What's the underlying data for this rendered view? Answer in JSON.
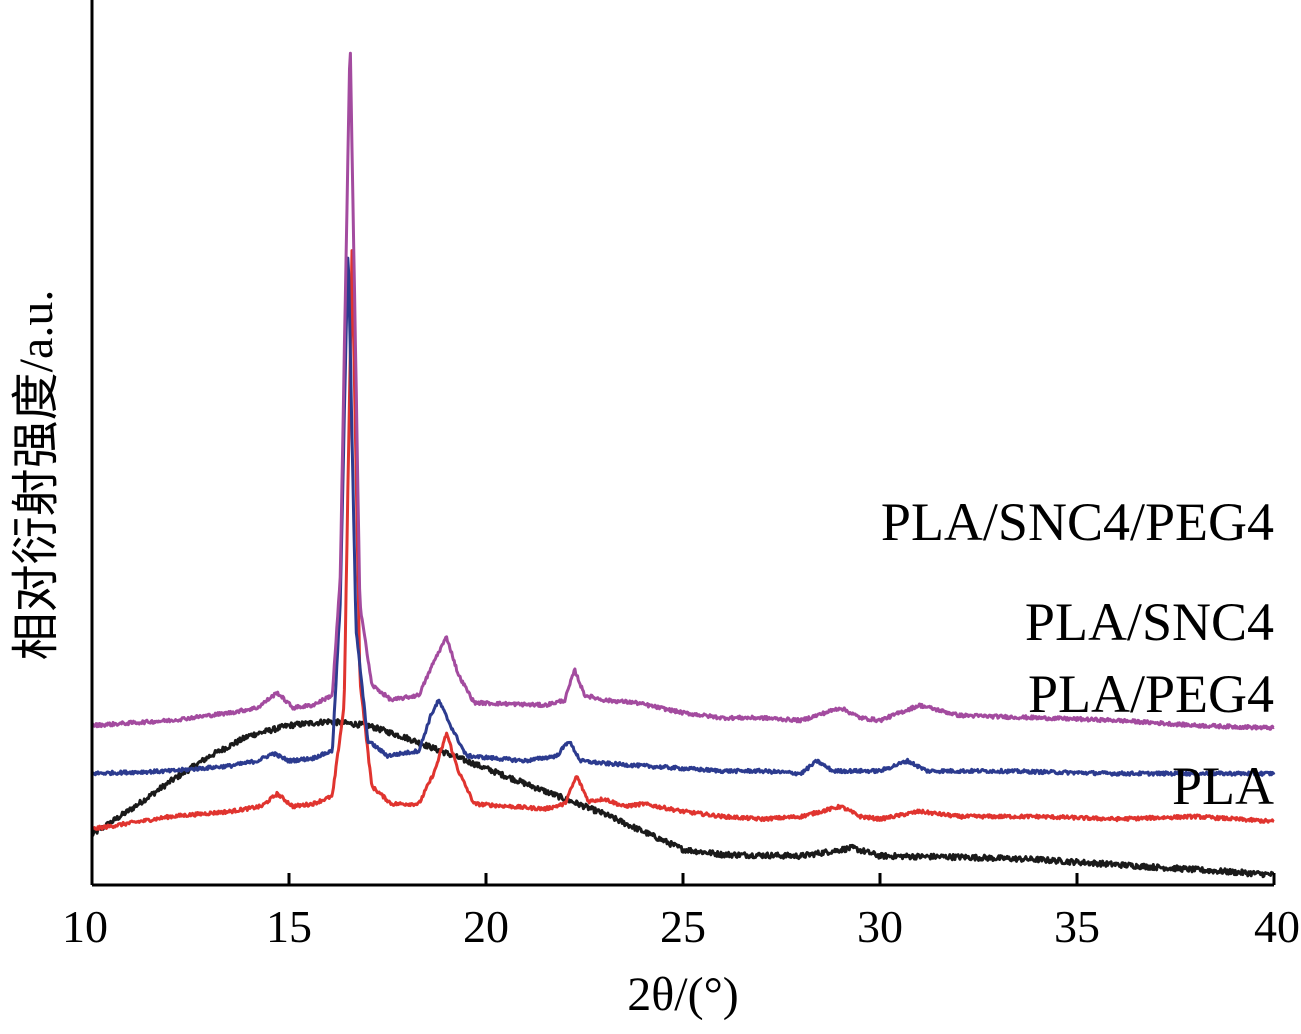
{
  "chart_data": {
    "type": "line",
    "xlabel": "2θ/(°)",
    "ylabel": "相对衍射强度/a.u.",
    "xlim": [
      10,
      40
    ],
    "xticks": [
      10,
      15,
      20,
      25,
      30,
      35,
      40
    ],
    "yticks_shown": false,
    "legend": "inline labels at right end of each trace",
    "series": [
      {
        "name": "PLA",
        "color": "#1a1a1a",
        "points": [
          [
            10,
            0.44
          ],
          [
            11,
            0.95
          ],
          [
            12,
            1.5
          ],
          [
            13,
            2.0
          ],
          [
            14,
            2.4
          ],
          [
            15,
            2.6
          ],
          [
            16,
            2.68
          ],
          [
            17,
            2.6
          ],
          [
            18,
            2.35
          ],
          [
            19,
            2.05
          ],
          [
            20,
            1.75
          ],
          [
            21,
            1.45
          ],
          [
            22,
            1.15
          ],
          [
            23,
            0.85
          ],
          [
            24,
            0.5
          ],
          [
            25,
            0.15
          ],
          [
            26,
            0.05
          ],
          [
            28,
            0.02
          ],
          [
            29.3,
            0.18
          ],
          [
            30,
            0.02
          ],
          [
            32,
            0.0
          ],
          [
            34,
            -0.05
          ],
          [
            36,
            -0.15
          ],
          [
            38,
            -0.25
          ],
          [
            40,
            -0.35
          ]
        ]
      },
      {
        "name": "PLA/PEG4",
        "color": "#e0342f",
        "points": [
          [
            10,
            0.55
          ],
          [
            12,
            0.8
          ],
          [
            13.5,
            0.9
          ],
          [
            14.3,
            1.0
          ],
          [
            14.7,
            1.25
          ],
          [
            15.1,
            1.0
          ],
          [
            15.6,
            1.05
          ],
          [
            16.1,
            1.2
          ],
          [
            16.4,
            3.0
          ],
          [
            16.6,
            12.0
          ],
          [
            16.8,
            3.5
          ],
          [
            17.1,
            1.4
          ],
          [
            17.6,
            1.05
          ],
          [
            18.3,
            1.05
          ],
          [
            18.7,
            1.7
          ],
          [
            19.0,
            2.45
          ],
          [
            19.3,
            1.7
          ],
          [
            19.7,
            1.05
          ],
          [
            21.5,
            0.95
          ],
          [
            22.0,
            1.05
          ],
          [
            22.3,
            1.6
          ],
          [
            22.6,
            1.1
          ],
          [
            23.0,
            1.15
          ],
          [
            23.5,
            1.0
          ],
          [
            24.0,
            1.05
          ],
          [
            25.0,
            0.9
          ],
          [
            26.0,
            0.8
          ],
          [
            27.0,
            0.75
          ],
          [
            28.0,
            0.8
          ],
          [
            29.0,
            1.0
          ],
          [
            29.5,
            0.8
          ],
          [
            30.0,
            0.75
          ],
          [
            31.0,
            0.9
          ],
          [
            32.0,
            0.8
          ],
          [
            34.0,
            0.8
          ],
          [
            36.0,
            0.75
          ],
          [
            38.0,
            0.8
          ],
          [
            40.0,
            0.7
          ]
        ]
      },
      {
        "name": "PLA/SNC4",
        "color": "#2c3b8f",
        "points": [
          [
            10,
            1.65
          ],
          [
            12,
            1.7
          ],
          [
            13.5,
            1.8
          ],
          [
            14.2,
            1.9
          ],
          [
            14.6,
            2.05
          ],
          [
            15.0,
            1.9
          ],
          [
            15.6,
            1.95
          ],
          [
            16.1,
            2.1
          ],
          [
            16.3,
            5.0
          ],
          [
            16.5,
            12.1
          ],
          [
            16.7,
            4.5
          ],
          [
            17.0,
            2.3
          ],
          [
            17.5,
            2.0
          ],
          [
            18.3,
            2.1
          ],
          [
            18.6,
            2.8
          ],
          [
            18.8,
            3.1
          ],
          [
            19.1,
            2.6
          ],
          [
            19.5,
            2.0
          ],
          [
            21.0,
            1.9
          ],
          [
            21.8,
            2.0
          ],
          [
            22.1,
            2.3
          ],
          [
            22.4,
            1.9
          ],
          [
            23.0,
            1.85
          ],
          [
            24.0,
            1.8
          ],
          [
            25.0,
            1.75
          ],
          [
            26.0,
            1.7
          ],
          [
            27.0,
            1.7
          ],
          [
            28.0,
            1.65
          ],
          [
            28.4,
            1.9
          ],
          [
            28.8,
            1.7
          ],
          [
            30.0,
            1.7
          ],
          [
            30.7,
            1.9
          ],
          [
            31.2,
            1.7
          ],
          [
            33.0,
            1.7
          ],
          [
            36.0,
            1.65
          ],
          [
            38.0,
            1.65
          ],
          [
            40.0,
            1.65
          ]
        ]
      },
      {
        "name": "PLA/SNC4/PEG4",
        "color": "#a34b9f",
        "points": [
          [
            10,
            2.6
          ],
          [
            12,
            2.7
          ],
          [
            13.5,
            2.85
          ],
          [
            14.2,
            2.95
          ],
          [
            14.7,
            3.25
          ],
          [
            15.1,
            2.95
          ],
          [
            15.6,
            3.0
          ],
          [
            16.1,
            3.2
          ],
          [
            16.3,
            5.5
          ],
          [
            16.55,
            16.2
          ],
          [
            16.8,
            5.0
          ],
          [
            17.1,
            3.4
          ],
          [
            17.6,
            3.1
          ],
          [
            18.3,
            3.2
          ],
          [
            18.7,
            3.9
          ],
          [
            19.0,
            4.35
          ],
          [
            19.3,
            3.6
          ],
          [
            19.7,
            3.05
          ],
          [
            21.5,
            3.0
          ],
          [
            22.0,
            3.1
          ],
          [
            22.25,
            3.7
          ],
          [
            22.5,
            3.2
          ],
          [
            23.0,
            3.1
          ],
          [
            23.8,
            3.05
          ],
          [
            25.0,
            2.85
          ],
          [
            26.0,
            2.75
          ],
          [
            27.0,
            2.75
          ],
          [
            28.0,
            2.7
          ],
          [
            29.0,
            2.95
          ],
          [
            29.5,
            2.75
          ],
          [
            30.0,
            2.7
          ],
          [
            31.0,
            3.0
          ],
          [
            32.0,
            2.8
          ],
          [
            34.0,
            2.75
          ],
          [
            36.0,
            2.7
          ],
          [
            38.0,
            2.6
          ],
          [
            40.0,
            2.55
          ]
        ]
      }
    ]
  }
}
